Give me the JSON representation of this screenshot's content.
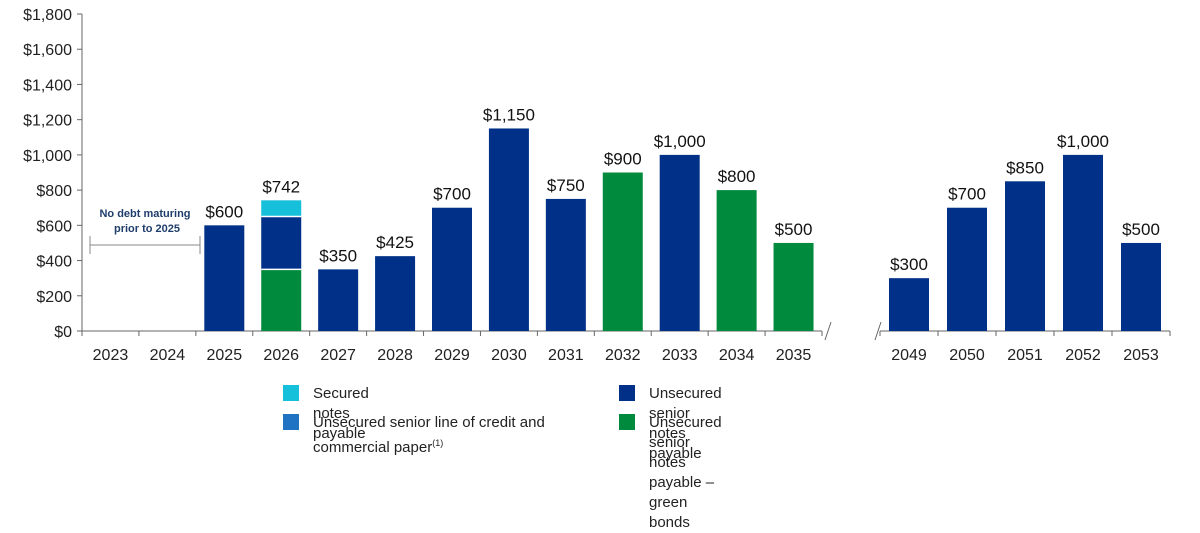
{
  "colors": {
    "secured": "#16c0db",
    "line_of_credit": "#1f73c2",
    "unsecured": "#003087",
    "green": "#008a3e",
    "axis": "#666666",
    "annotation": "#1f3d6b"
  },
  "chart_data": {
    "type": "bar",
    "stacked": true,
    "ylim": [
      0,
      1800
    ],
    "yticks": [
      "$0",
      "$200",
      "$400",
      "$600",
      "$800",
      "$1,000",
      "$1,200",
      "$1,400",
      "$1,600",
      "$1,800"
    ],
    "grid": false,
    "legend_position": "bottom",
    "axis_break": "between 2035 and 2049",
    "categories": [
      "2023",
      "2024",
      "2025",
      "2026",
      "2027",
      "2028",
      "2029",
      "2030",
      "2031",
      "2032",
      "2033",
      "2034",
      "2035",
      "2049",
      "2050",
      "2051",
      "2052",
      "2053"
    ],
    "series": [
      {
        "name": "Unsecured senior notes payable – green bonds",
        "color_key": "green",
        "values": [
          0,
          0,
          0,
          350,
          0,
          0,
          0,
          0,
          0,
          900,
          0,
          800,
          500,
          0,
          0,
          0,
          0,
          0
        ]
      },
      {
        "name": "Unsecured senior notes payable",
        "color_key": "unsecured",
        "values": [
          0,
          0,
          600,
          300,
          350,
          425,
          700,
          1150,
          750,
          0,
          1000,
          0,
          0,
          300,
          700,
          850,
          1000,
          500
        ]
      },
      {
        "name": "Secured notes payable",
        "color_key": "secured",
        "values": [
          0,
          0,
          0,
          92,
          0,
          0,
          0,
          0,
          0,
          0,
          0,
          0,
          0,
          0,
          0,
          0,
          0,
          0
        ]
      }
    ],
    "totals_labels": [
      "",
      "",
      "$600",
      "$742",
      "$350",
      "$425",
      "$700",
      "$1,150",
      "$750",
      "$900",
      "$1,000",
      "$800",
      "$500",
      "$300",
      "$700",
      "$850",
      "$1,000",
      "$500"
    ],
    "annotation": {
      "line1": "No debt maturing",
      "line2": "prior to 2025"
    }
  },
  "legend": {
    "items": [
      {
        "label": "Secured notes payable",
        "color_key": "secured",
        "sup": ""
      },
      {
        "label": "Unsecured senior notes payable",
        "color_key": "unsecured",
        "sup": ""
      },
      {
        "label": "Unsecured senior line of credit and commercial paper",
        "color_key": "line_of_credit",
        "sup": "(1)"
      },
      {
        "label": "Unsecured senior notes payable – green bonds",
        "color_key": "green",
        "sup": ""
      }
    ]
  }
}
